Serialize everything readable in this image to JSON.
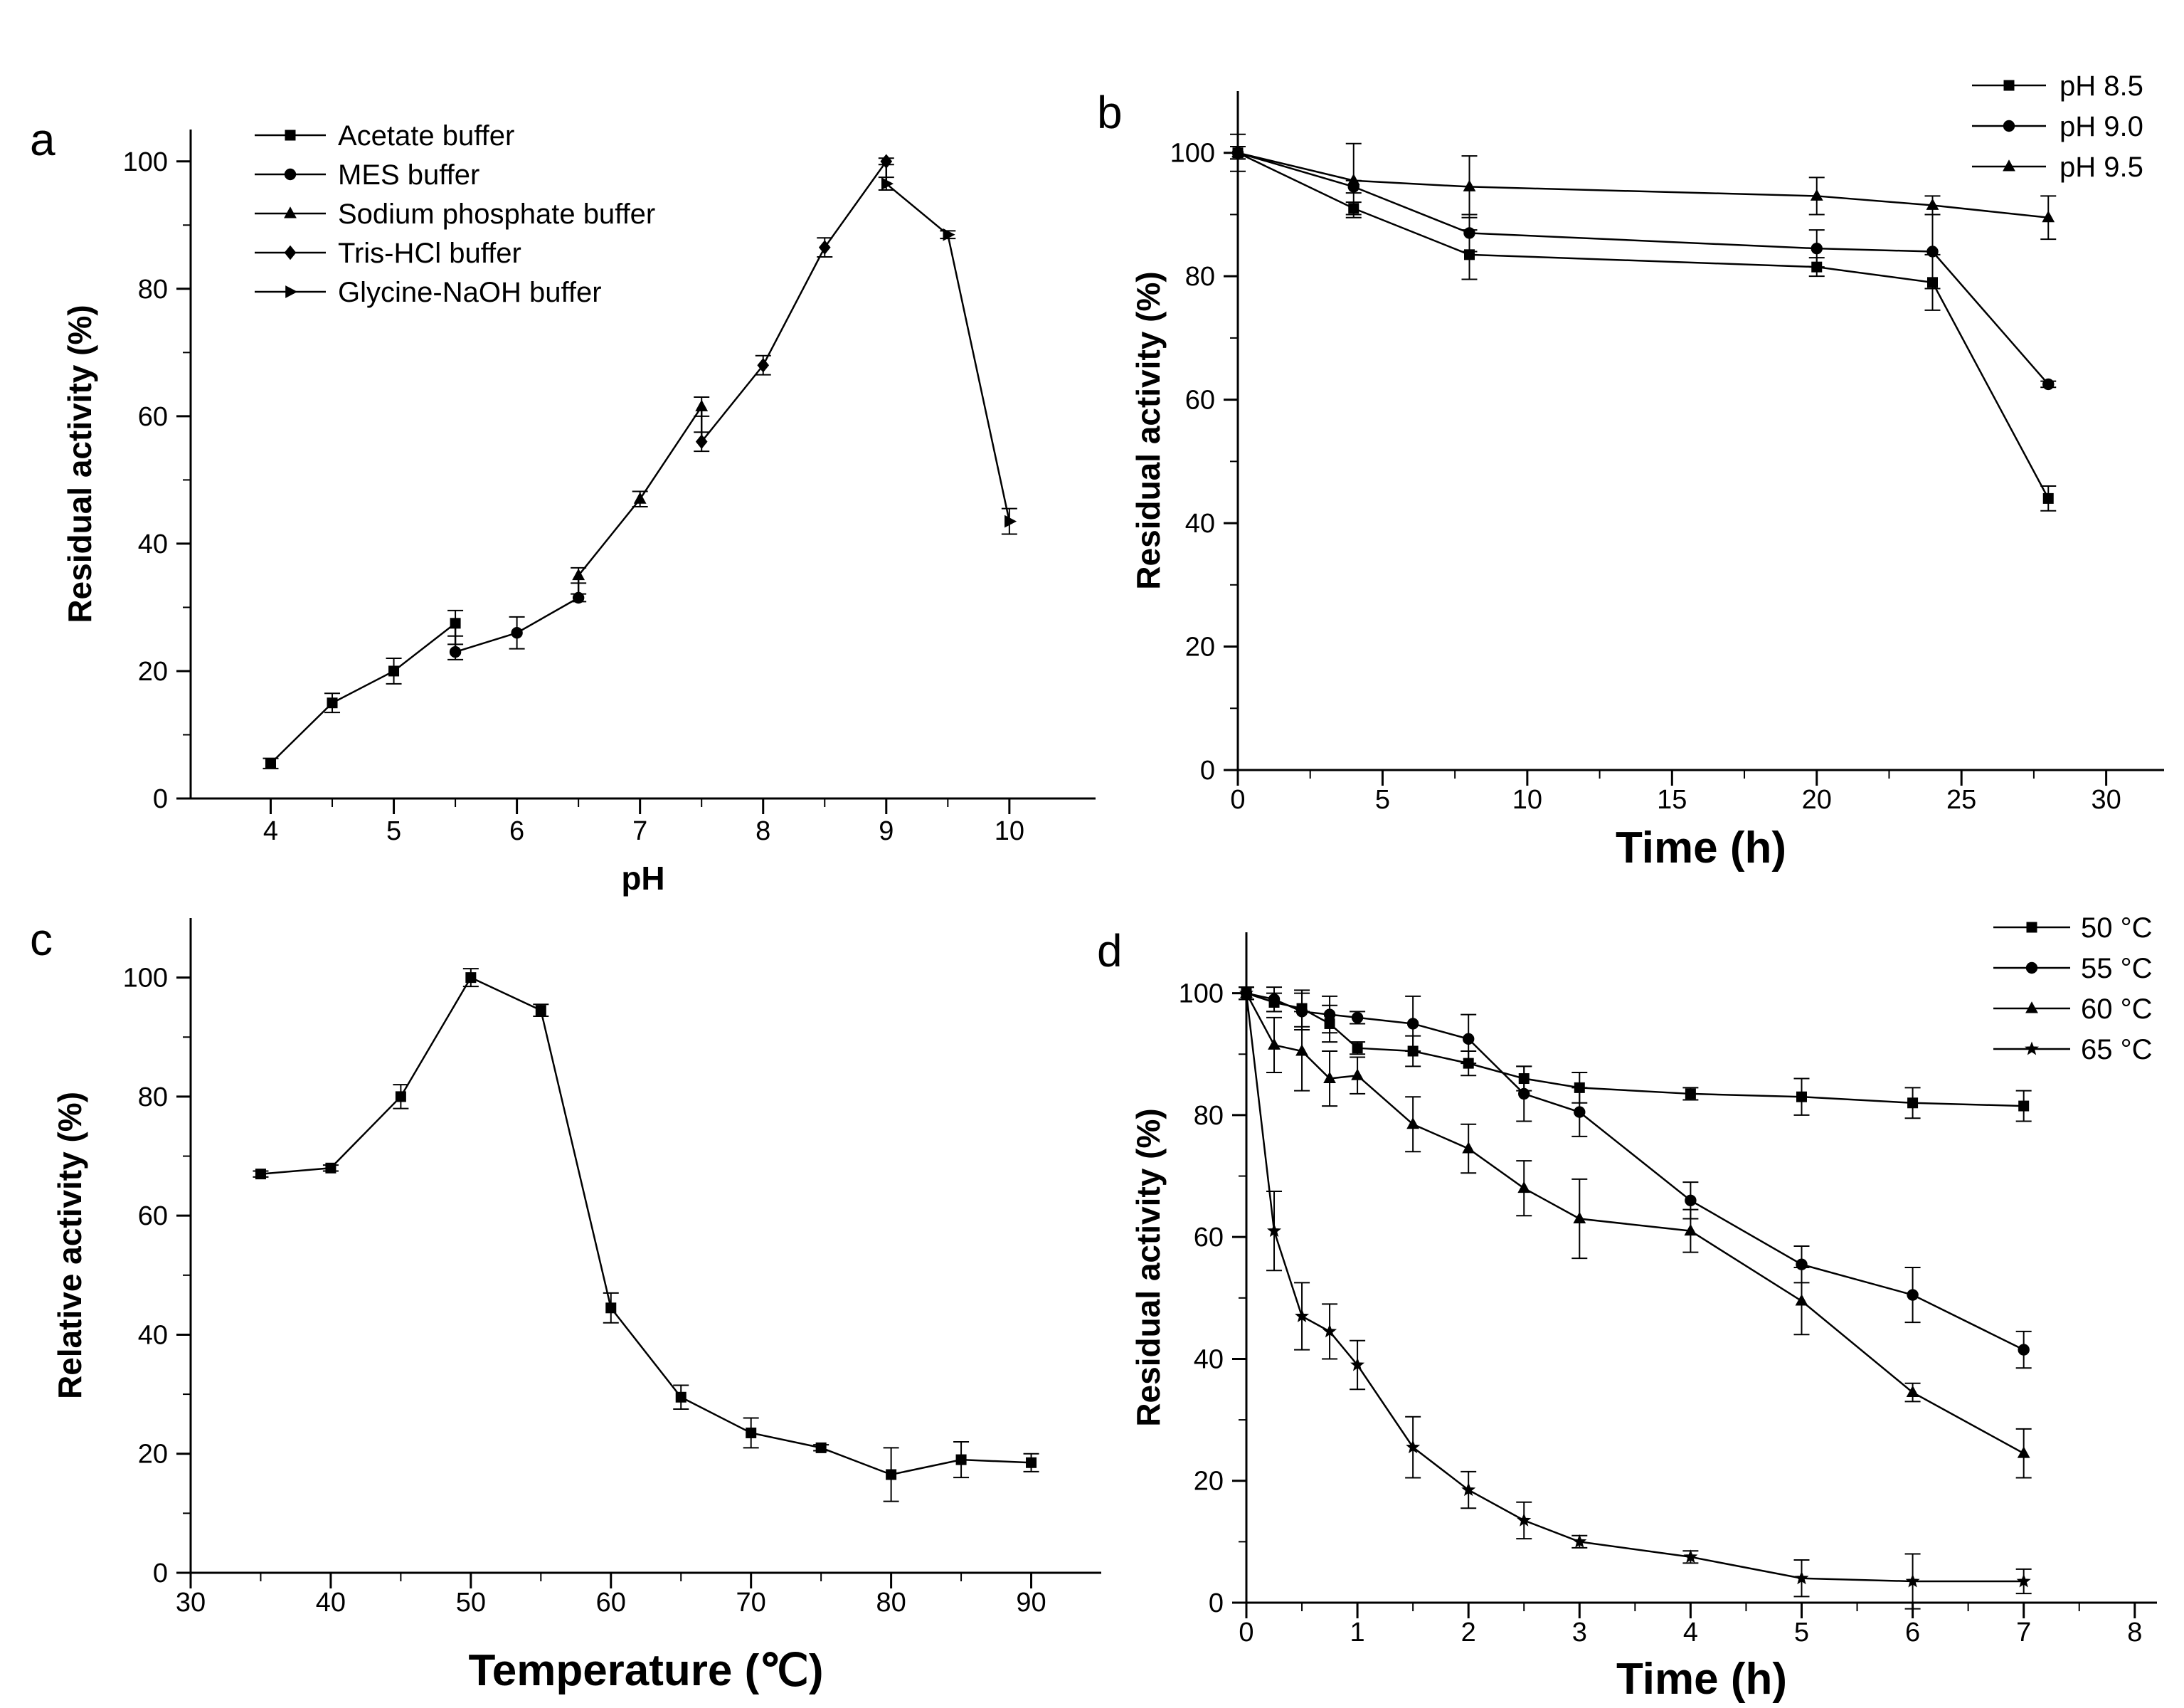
{
  "chart_data": [
    {
      "id": "a",
      "panel_letter": "a",
      "type": "line",
      "xlabel": "pH",
      "ylabel": "Residual activity (%)",
      "xlim": [
        3.35,
        10.7
      ],
      "ylim": [
        0,
        105
      ],
      "xticks": [
        4,
        5,
        6,
        7,
        8,
        9,
        10
      ],
      "yticks": [
        0,
        20,
        40,
        60,
        80,
        100
      ],
      "legend_position": "top-left",
      "connect_series": true,
      "series": [
        {
          "name": "Acetate buffer",
          "marker": "square",
          "x": [
            4,
            4.5,
            5,
            5.5
          ],
          "y": [
            5.5,
            15,
            20,
            27.5
          ],
          "err": [
            0.8,
            1.5,
            2,
            2
          ]
        },
        {
          "name": "MES buffer",
          "marker": "circle",
          "x": [
            5.5,
            6,
            6.5
          ],
          "y": [
            23,
            26,
            31.5
          ],
          "err": [
            1.2,
            2.5,
            0.6
          ]
        },
        {
          "name": "Sodium phosphate buffer",
          "marker": "triangle",
          "x": [
            6.5,
            7,
            7.5
          ],
          "y": [
            35,
            47,
            61.5
          ],
          "err": [
            1.2,
            1.2,
            1.5
          ]
        },
        {
          "name": "Tris-HCl buffer",
          "marker": "diamond",
          "x": [
            7.5,
            8,
            8.5,
            9
          ],
          "y": [
            56,
            68,
            86.5,
            100
          ],
          "err": [
            1.5,
            1.5,
            1.5,
            0.5
          ]
        },
        {
          "name": "Glycine-NaOH buffer",
          "marker": "right-triangle",
          "x": [
            9,
            9.5,
            10
          ],
          "y": [
            96.5,
            88.5,
            43.5
          ],
          "err": [
            1,
            0.6,
            2
          ]
        }
      ]
    },
    {
      "id": "b",
      "panel_letter": "b",
      "type": "line",
      "xlabel": "Time (h)",
      "ylabel": "Residual activity (%)",
      "xlim": [
        0,
        32
      ],
      "ylim": [
        0,
        110
      ],
      "xticks": [
        0,
        5,
        10,
        15,
        20,
        25,
        30
      ],
      "yticks": [
        0,
        20,
        40,
        60,
        80,
        100
      ],
      "legend_position": "top-right",
      "series": [
        {
          "name": "pH 8.5",
          "marker": "square",
          "x": [
            0,
            4,
            8,
            20,
            24,
            28
          ],
          "y": [
            100,
            91,
            83.5,
            81.5,
            79,
            44
          ],
          "err": [
            1,
            1,
            4,
            1.5,
            4.5,
            2
          ]
        },
        {
          "name": "pH 9.0",
          "marker": "circle",
          "x": [
            0,
            4,
            8,
            20,
            24,
            28
          ],
          "y": [
            100,
            94.5,
            87,
            84.5,
            84,
            62.5
          ],
          "err": [
            1,
            1,
            3,
            3,
            6,
            0.5
          ]
        },
        {
          "name": "pH 9.5",
          "marker": "triangle",
          "x": [
            0,
            4,
            8,
            20,
            24,
            28
          ],
          "y": [
            100,
            95.5,
            94.5,
            93,
            91.5,
            89.5
          ],
          "err": [
            3,
            6,
            5,
            3,
            1.5,
            3.5
          ]
        }
      ]
    },
    {
      "id": "c",
      "panel_letter": "c",
      "type": "line",
      "xlabel": "Temperature (℃)",
      "ylabel": "Relative activity (%)",
      "xlim": [
        30,
        95
      ],
      "ylim": [
        0,
        110
      ],
      "xticks": [
        30,
        40,
        50,
        60,
        70,
        80,
        90
      ],
      "yticks": [
        0,
        20,
        40,
        60,
        80,
        100
      ],
      "legend_position": "none",
      "series": [
        {
          "name": "Relative activity",
          "marker": "square",
          "x": [
            35,
            40,
            45,
            50,
            55,
            60,
            65,
            70,
            75,
            80,
            85,
            90
          ],
          "y": [
            67,
            68,
            80,
            100,
            94.5,
            44.5,
            29.5,
            23.5,
            21,
            16.5,
            19,
            18.5
          ],
          "err": [
            0.5,
            0.5,
            2,
            1.5,
            1,
            2.5,
            2,
            2.5,
            0.5,
            4.5,
            3,
            1.5
          ]
        }
      ]
    },
    {
      "id": "d",
      "panel_letter": "d",
      "type": "line",
      "xlabel": "Time (h)",
      "ylabel": "Residual activity (%)",
      "xlim": [
        0,
        8.2
      ],
      "ylim": [
        0,
        110
      ],
      "xticks": [
        0,
        1,
        2,
        3,
        4,
        5,
        6,
        7,
        8
      ],
      "yticks": [
        0,
        20,
        40,
        60,
        80,
        100
      ],
      "legend_position": "top-right",
      "series": [
        {
          "name": "50 °C",
          "marker": "square",
          "x": [
            0,
            0.25,
            0.5,
            0.75,
            1,
            1.5,
            2,
            2.5,
            3,
            4,
            5,
            6,
            7
          ],
          "y": [
            100,
            98.5,
            97.5,
            95,
            91,
            90.5,
            88.5,
            86,
            84.5,
            83.5,
            83,
            82,
            81.5
          ],
          "err": [
            1,
            1.5,
            3,
            3,
            1,
            2.5,
            2,
            2,
            2.5,
            1,
            3,
            2.5,
            2.5
          ]
        },
        {
          "name": "55 °C",
          "marker": "circle",
          "x": [
            0,
            0.25,
            0.5,
            0.75,
            1,
            1.5,
            2,
            2.5,
            3,
            4,
            5,
            6,
            7
          ],
          "y": [
            100,
            99,
            97,
            96.5,
            96,
            95,
            92.5,
            83.5,
            80.5,
            66,
            55.5,
            50.5,
            41.5
          ],
          "err": [
            1,
            2,
            3,
            3,
            1,
            4.5,
            4,
            4.5,
            4,
            3,
            3,
            4.5,
            3
          ]
        },
        {
          "name": "60 °C",
          "marker": "triangle",
          "x": [
            0,
            0.25,
            0.5,
            0.75,
            1,
            1.5,
            2,
            2.5,
            3,
            4,
            5,
            6,
            7
          ],
          "y": [
            100,
            91.5,
            90.5,
            86,
            86.5,
            78.5,
            74.5,
            68,
            63,
            61,
            49.5,
            34.5,
            24.5
          ],
          "err": [
            1,
            4.5,
            6.5,
            4.5,
            3,
            4.5,
            4,
            4.5,
            6.5,
            3.5,
            5.5,
            1.5,
            4
          ]
        },
        {
          "name": "65 °C",
          "marker": "star",
          "x": [
            0,
            0.25,
            0.5,
            0.75,
            1,
            1.5,
            2,
            2.5,
            3,
            4,
            5,
            6,
            7
          ],
          "y": [
            100,
            61,
            47,
            44.5,
            39,
            25.5,
            18.5,
            13.5,
            10,
            7.5,
            4,
            3.5,
            3.5
          ],
          "err": [
            1,
            6.5,
            5.5,
            4.5,
            4,
            5,
            3,
            3,
            1,
            1,
            3,
            4.5,
            2
          ]
        }
      ]
    }
  ]
}
